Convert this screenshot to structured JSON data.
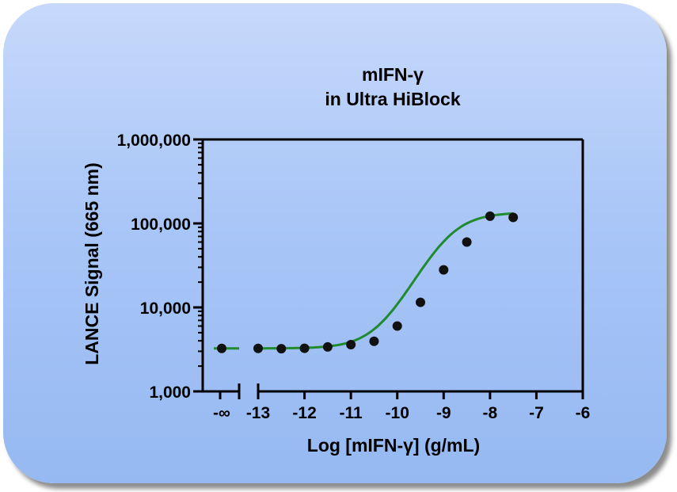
{
  "chart_data": {
    "type": "scatter",
    "title_line1": "mIFN-γ",
    "title_line2": "in Ultra HiBlock",
    "xlabel": "Log [mIFN-γ] (g/mL)",
    "ylabel": "LANCE Signal (665 nm)",
    "y_scale": "log",
    "ylim": [
      1000,
      1000000
    ],
    "xlim": [
      -13,
      -6
    ],
    "y_ticks": [
      {
        "value": 1000,
        "label": "1,000"
      },
      {
        "value": 10000,
        "label": "10,000"
      },
      {
        "value": 100000,
        "label": "100,000"
      },
      {
        "value": 1000000,
        "label": "1,000,000"
      }
    ],
    "x_ticks": [
      {
        "value": -13,
        "label": "-13"
      },
      {
        "value": -12,
        "label": "-12"
      },
      {
        "value": -11,
        "label": "-11"
      },
      {
        "value": -10,
        "label": "-10"
      },
      {
        "value": -9,
        "label": "-9"
      },
      {
        "value": -8,
        "label": "-8"
      },
      {
        "value": -7,
        "label": "-7"
      },
      {
        "value": -6,
        "label": "-6"
      }
    ],
    "x_break_label": "-∞",
    "zero_dose_point": {
      "x": "-∞",
      "y": 3250
    },
    "points": [
      {
        "x": -13.0,
        "y": 3250
      },
      {
        "x": -12.5,
        "y": 3220
      },
      {
        "x": -12.0,
        "y": 3260
      },
      {
        "x": -11.5,
        "y": 3380
      },
      {
        "x": -11.0,
        "y": 3600
      },
      {
        "x": -10.5,
        "y": 3950
      },
      {
        "x": -10.0,
        "y": 6000
      },
      {
        "x": -9.5,
        "y": 11500
      },
      {
        "x": -9.0,
        "y": 28000
      },
      {
        "x": -8.5,
        "y": 60000
      },
      {
        "x": -8.0,
        "y": 122000
      },
      {
        "x": -7.5,
        "y": 118000
      }
    ],
    "fit": {
      "model": "four-parameter logistic",
      "bottom": 3250,
      "top": 135000,
      "logEC50": -8.9,
      "hill": 1.1,
      "x_range": [
        -13,
        -7.5
      ]
    },
    "colors": {
      "fit_line": "#1f8a2e",
      "points": "#111111",
      "axis": "#000000"
    },
    "grid": false,
    "legend": "none"
  }
}
